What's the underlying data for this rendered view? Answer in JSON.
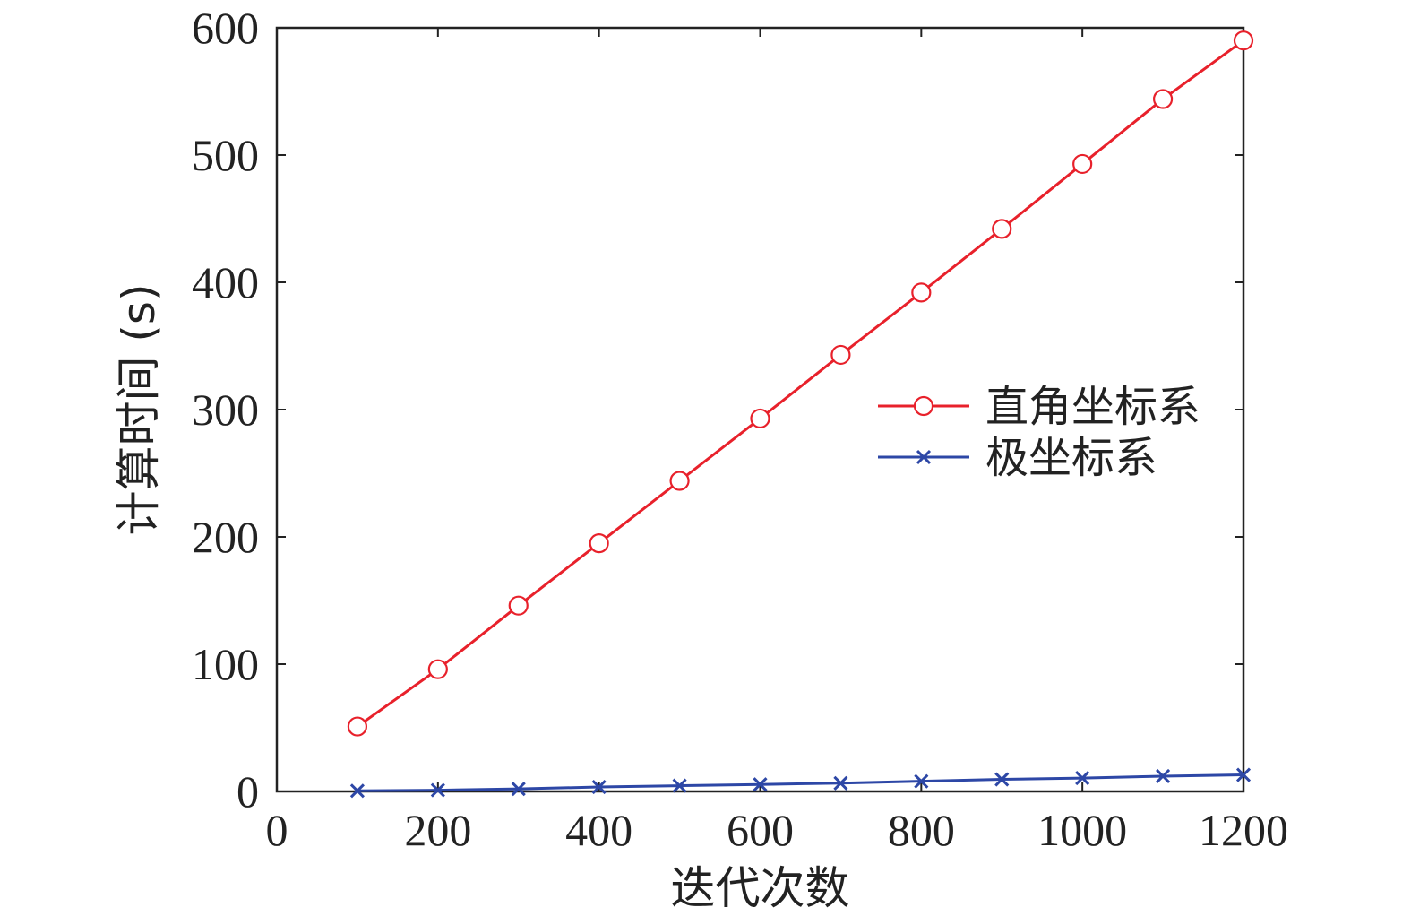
{
  "chart_data": {
    "type": "line",
    "xlabel": "迭代次数",
    "ylabel": "计算时间 (s)",
    "xlim": [
      0,
      1200
    ],
    "ylim": [
      0,
      600
    ],
    "xticks": [
      0,
      200,
      400,
      600,
      800,
      1000,
      1200
    ],
    "yticks": [
      0,
      100,
      200,
      300,
      400,
      500,
      600
    ],
    "grid": false,
    "legend_position": "center-right",
    "series": [
      {
        "name": "直角坐标系",
        "color": "#e8212b",
        "marker": "circle",
        "x": [
          100,
          200,
          300,
          400,
          500,
          600,
          700,
          800,
          900,
          1000,
          1100,
          1200
        ],
        "y": [
          51,
          96,
          146,
          195,
          244,
          293,
          343,
          392,
          442,
          493,
          544,
          590
        ]
      },
      {
        "name": "极坐标系",
        "color": "#2d47a6",
        "marker": "x",
        "x": [
          100,
          200,
          300,
          400,
          500,
          600,
          700,
          800,
          900,
          1000,
          1100,
          1200
        ],
        "y": [
          0.5,
          1,
          2,
          3.5,
          4.5,
          5.5,
          6.5,
          8,
          9.5,
          10.5,
          12,
          13
        ]
      }
    ]
  }
}
